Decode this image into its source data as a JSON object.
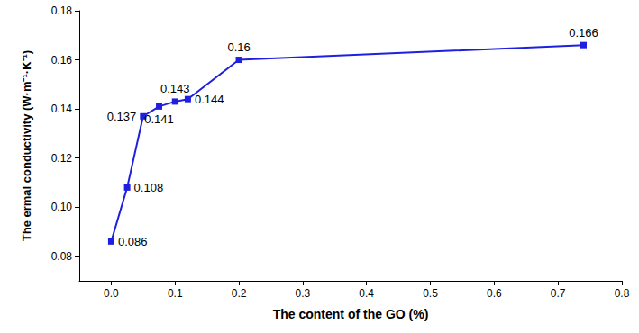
{
  "chart_data": {
    "type": "line",
    "x_label": "The content of the GO (%)",
    "y_label": "The ermal conductivity (W·m⁻¹·K⁻¹)",
    "x": [
      0,
      0.025,
      0.05,
      0.075,
      0.1,
      0.12,
      0.2,
      0.74
    ],
    "values": [
      0.086,
      0.108,
      0.137,
      0.141,
      0.143,
      0.144,
      0.16,
      0.166
    ],
    "color": "#1f1fe0",
    "marker": "square",
    "data_labels": true,
    "grid": false,
    "xlim": [
      -0.05,
      0.8
    ],
    "xticks": [
      {
        "value": 0,
        "label": "0.0"
      },
      0.1,
      0.2,
      0.3,
      0.4,
      0.5,
      0.6,
      0.7,
      0.8
    ],
    "ylim": [
      0.07,
      0.18
    ],
    "yticks": [
      0.08,
      {
        "value": 0.1,
        "label": "0.10"
      },
      0.12,
      0.14,
      0.16,
      0.18
    ]
  }
}
